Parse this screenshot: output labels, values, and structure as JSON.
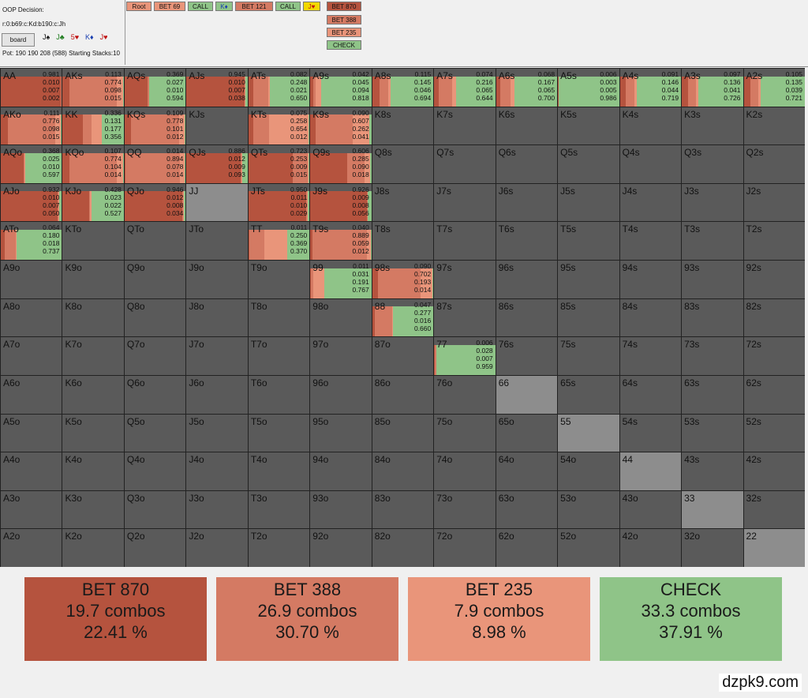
{
  "info": {
    "title": "OOP Decision:",
    "line": "r:0:b69:c:Kd:b190:c:Jh",
    "board_button": "board",
    "board_cards": [
      {
        "card": "J♠",
        "color": "#111111"
      },
      {
        "card": "J♣",
        "color": "#1a7a1a"
      },
      {
        "card": "5♥",
        "color": "#c01010"
      },
      {
        "card": "K♦",
        "color": "#1a3fb0"
      },
      {
        "card": "J♥",
        "color": "#c01010"
      }
    ],
    "pot": "Pot: 190 190 208 (588) Starting Stacks:10"
  },
  "nav": {
    "root": "Root",
    "bet69": "BET 69",
    "call1": "CALL",
    "kd": "K♦",
    "bet121": "BET 121",
    "call2": "CALL",
    "jh": "J♥",
    "bet870": "BET 870",
    "bet388": "BET 388",
    "bet235": "BET 235",
    "check": "CHECK"
  },
  "colors": {
    "bet870": "#b5533e",
    "bet388": "#d47a63",
    "bet235": "#e9957a",
    "check": "#8fc488",
    "empty": "#5a5a5a",
    "pair_empty": "#8d8d8d"
  },
  "ranks": [
    "A",
    "K",
    "Q",
    "J",
    "T",
    "9",
    "8",
    "7",
    "6",
    "5",
    "4",
    "3",
    "2"
  ],
  "cells": {
    "AA": [
      0.981,
      0.01,
      0.007,
      0.002
    ],
    "AKs": [
      0.113,
      0.774,
      0.098,
      0.015
    ],
    "AQs": [
      0.369,
      0.027,
      0.01,
      0.594
    ],
    "AJs": [
      0.945,
      0.01,
      0.007,
      0.038
    ],
    "ATs": [
      0.082,
      0.248,
      0.021,
      0.65
    ],
    "A9s": [
      0.042,
      0.045,
      0.094,
      0.818
    ],
    "A8s": [
      0.115,
      0.145,
      0.046,
      0.694
    ],
    "A7s": [
      0.074,
      0.216,
      0.065,
      0.644
    ],
    "A6s": [
      0.068,
      0.167,
      0.065,
      0.7
    ],
    "A5s": [
      0.006,
      0.003,
      0.005,
      0.986
    ],
    "A4s": [
      0.091,
      0.146,
      0.044,
      0.719
    ],
    "A3s": [
      0.097,
      0.136,
      0.041,
      0.726
    ],
    "A2s": [
      0.105,
      0.135,
      0.039,
      0.721
    ],
    "AKo": [
      0.111,
      0.776,
      0.098,
      0.015
    ],
    "KK": [
      0.336,
      0.131,
      0.177,
      0.356
    ],
    "KQs": [
      0.109,
      0.778,
      0.101,
      0.012
    ],
    "KTs": [
      0.075,
      0.258,
      0.654,
      0.012
    ],
    "K9s": [
      0.09,
      0.607,
      0.262,
      0.041
    ],
    "AQo": [
      0.368,
      0.025,
      0.01,
      0.597
    ],
    "KQo": [
      0.107,
      0.774,
      0.104,
      0.014
    ],
    "QQ": [
      0.014,
      0.894,
      0.078,
      0.014
    ],
    "QJs": [
      0.886,
      0.012,
      0.009,
      0.093
    ],
    "QTs": [
      0.723,
      0.253,
      0.009,
      0.015
    ],
    "Q9s": [
      0.606,
      0.285,
      0.09,
      0.018
    ],
    "AJo": [
      0.932,
      0.01,
      0.007,
      0.05
    ],
    "KJo": [
      0.428,
      0.023,
      0.022,
      0.527
    ],
    "QJo": [
      0.946,
      0.012,
      0.008,
      0.034
    ],
    "JTs": [
      0.95,
      0.011,
      0.01,
      0.029
    ],
    "J9s": [
      0.926,
      0.009,
      0.008,
      0.056
    ],
    "ATo": [
      0.064,
      0.18,
      0.018,
      0.737
    ],
    "TT": [
      0.011,
      0.25,
      0.369,
      0.37
    ],
    "T9s": [
      0.04,
      0.889,
      0.059,
      0.012
    ],
    "99": [
      0.011,
      0.031,
      0.191,
      0.767
    ],
    "98s": [
      0.09,
      0.702,
      0.193,
      0.014
    ],
    "88": [
      0.047,
      0.277,
      0.016,
      0.66
    ],
    "77": [
      0.006,
      0.028,
      0.007,
      0.959
    ]
  },
  "summary": [
    {
      "action": "BET 870",
      "combos": "19.7 combos",
      "pct": "22.41 %"
    },
    {
      "action": "BET 388",
      "combos": "26.9 combos",
      "pct": "30.70 %"
    },
    {
      "action": "BET 235",
      "combos": "7.9 combos",
      "pct": "8.98 %"
    },
    {
      "action": "CHECK",
      "combos": "33.3 combos",
      "pct": "37.91 %"
    }
  ],
  "watermark": "dzpk9.com"
}
